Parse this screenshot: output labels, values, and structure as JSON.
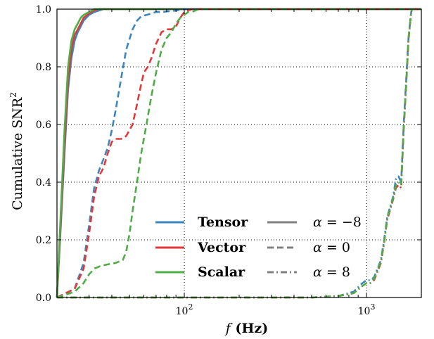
{
  "chart_data": {
    "type": "line",
    "xlabel": "f (Hz)",
    "ylabel": "Cumulative SNR²",
    "xscale": "log",
    "xlim": [
      20,
      2000
    ],
    "ylim": [
      0,
      1
    ],
    "grid": true,
    "grid_style": "dotted",
    "legend_placement": "lower-center",
    "x_ticks": [
      {
        "value": 100,
        "label": "10²"
      },
      {
        "value": 1000,
        "label": "10³"
      }
    ],
    "y_ticks": [
      {
        "value": 0.0,
        "label": "0.0"
      },
      {
        "value": 0.2,
        "label": "0.2"
      },
      {
        "value": 0.4,
        "label": "0.4"
      },
      {
        "value": 0.6,
        "label": "0.6"
      },
      {
        "value": 0.8,
        "label": "0.8"
      },
      {
        "value": 1.0,
        "label": "1.0"
      }
    ],
    "legend": {
      "polarizations": [
        {
          "name": "Tensor",
          "color": "#3a87c0"
        },
        {
          "name": "Vector",
          "color": "#e0383b"
        },
        {
          "name": "Scalar",
          "color": "#4fac46"
        }
      ],
      "alphas": [
        {
          "name": "α = −8",
          "style": "solid"
        },
        {
          "name": "α = 0",
          "style": "dashed"
        },
        {
          "name": "α = 8",
          "style": "dashdot"
        }
      ],
      "alpha_line_color": "#808080"
    },
    "series": [
      {
        "polarization": "Tensor",
        "alpha": "−8",
        "style": "solid",
        "color": "#3a87c0",
        "x": [
          20,
          21,
          22,
          23,
          24,
          25,
          26,
          27,
          28,
          30,
          32,
          34,
          36,
          40,
          60,
          100,
          2000
        ],
        "y": [
          0.0,
          0.25,
          0.5,
          0.72,
          0.83,
          0.89,
          0.92,
          0.94,
          0.96,
          0.98,
          0.99,
          0.995,
          1.0,
          1.0,
          1.0,
          1.0,
          1.0
        ]
      },
      {
        "polarization": "Vector",
        "alpha": "−8",
        "style": "solid",
        "color": "#e0383b",
        "x": [
          20,
          21,
          22,
          23,
          24,
          25,
          26,
          27,
          28,
          30,
          32,
          34,
          36,
          40,
          60,
          100,
          2000
        ],
        "y": [
          0.0,
          0.27,
          0.53,
          0.75,
          0.86,
          0.91,
          0.93,
          0.95,
          0.97,
          0.985,
          0.995,
          1.0,
          1.0,
          1.0,
          1.0,
          1.0,
          1.0
        ]
      },
      {
        "polarization": "Scalar",
        "alpha": "−8",
        "style": "solid",
        "color": "#4fac46",
        "x": [
          20,
          21,
          22,
          23,
          24,
          25,
          26,
          27,
          28,
          30,
          32,
          34,
          36,
          40,
          60,
          100,
          2000
        ],
        "y": [
          0.0,
          0.3,
          0.58,
          0.8,
          0.89,
          0.93,
          0.95,
          0.97,
          0.98,
          0.99,
          1.0,
          1.0,
          1.0,
          1.0,
          1.0,
          1.0,
          1.0
        ]
      },
      {
        "polarization": "Tensor",
        "alpha": "0",
        "style": "dashed",
        "color": "#3a87c0",
        "x": [
          20,
          25,
          28,
          30,
          32,
          34,
          36,
          38,
          40,
          42,
          45,
          48,
          52,
          55,
          58,
          62,
          66,
          70,
          75,
          80,
          90,
          100,
          120,
          200,
          2000
        ],
        "y": [
          0.0,
          0.03,
          0.12,
          0.25,
          0.38,
          0.44,
          0.48,
          0.52,
          0.58,
          0.65,
          0.76,
          0.86,
          0.93,
          0.96,
          0.975,
          0.98,
          0.985,
          0.99,
          0.99,
          0.992,
          0.995,
          1.0,
          1.0,
          1.0,
          1.0
        ]
      },
      {
        "polarization": "Vector",
        "alpha": "0",
        "style": "dashed",
        "color": "#e0383b",
        "x": [
          20,
          25,
          28,
          30,
          32,
          34,
          36,
          38,
          40,
          42,
          45,
          48,
          52,
          55,
          58,
          60,
          63,
          66,
          70,
          75,
          80,
          85,
          90,
          95,
          100,
          110,
          120,
          200,
          2000
        ],
        "y": [
          0.0,
          0.03,
          0.1,
          0.22,
          0.35,
          0.42,
          0.45,
          0.5,
          0.54,
          0.55,
          0.55,
          0.56,
          0.6,
          0.67,
          0.74,
          0.78,
          0.8,
          0.83,
          0.88,
          0.92,
          0.93,
          0.93,
          0.94,
          0.97,
          0.99,
          1.0,
          1.0,
          1.0,
          1.0
        ]
      },
      {
        "polarization": "Scalar",
        "alpha": "0",
        "style": "dashed",
        "color": "#4fac46",
        "x": [
          20,
          25,
          28,
          30,
          32,
          35,
          38,
          42,
          46,
          48,
          50,
          52,
          55,
          58,
          62,
          66,
          70,
          75,
          80,
          85,
          90,
          95,
          100,
          105,
          110,
          120,
          200,
          2000
        ],
        "y": [
          0.0,
          0.02,
          0.05,
          0.08,
          0.1,
          0.11,
          0.115,
          0.12,
          0.13,
          0.16,
          0.22,
          0.3,
          0.4,
          0.5,
          0.6,
          0.7,
          0.78,
          0.86,
          0.9,
          0.92,
          0.95,
          0.97,
          0.98,
          0.99,
          0.99,
          1.0,
          1.0,
          1.0
        ]
      },
      {
        "polarization": "Tensor",
        "alpha": "8",
        "style": "dashdot",
        "color": "#3a87c0",
        "x": [
          20,
          500,
          700,
          850,
          950,
          1000,
          1050,
          1100,
          1150,
          1200,
          1250,
          1300,
          1400,
          1450,
          1500,
          1550,
          1600,
          1650,
          1700,
          1740,
          1760,
          1780
        ],
        "y": [
          0.0,
          0.0,
          0.005,
          0.02,
          0.05,
          0.06,
          0.06,
          0.07,
          0.1,
          0.13,
          0.2,
          0.28,
          0.35,
          0.41,
          0.42,
          0.4,
          0.6,
          0.75,
          0.9,
          0.96,
          0.99,
          1.0
        ]
      },
      {
        "polarization": "Vector",
        "alpha": "8",
        "style": "dashdot",
        "color": "#e0383b",
        "x": [
          20,
          500,
          700,
          850,
          950,
          1000,
          1050,
          1100,
          1150,
          1200,
          1250,
          1300,
          1400,
          1450,
          1500,
          1550,
          1600,
          1650,
          1700,
          1740,
          1760,
          1780
        ],
        "y": [
          0.0,
          0.0,
          0.005,
          0.015,
          0.04,
          0.05,
          0.05,
          0.06,
          0.09,
          0.12,
          0.19,
          0.27,
          0.34,
          0.38,
          0.39,
          0.38,
          0.58,
          0.73,
          0.89,
          0.96,
          0.99,
          1.0
        ]
      },
      {
        "polarization": "Scalar",
        "alpha": "8",
        "style": "dashdot",
        "color": "#4fac46",
        "x": [
          20,
          500,
          700,
          850,
          950,
          1000,
          1050,
          1100,
          1150,
          1200,
          1250,
          1300,
          1400,
          1450,
          1500,
          1550,
          1600,
          1650,
          1700,
          1740,
          1760,
          1780
        ],
        "y": [
          0.0,
          0.0,
          0.005,
          0.015,
          0.04,
          0.05,
          0.05,
          0.065,
          0.095,
          0.125,
          0.195,
          0.275,
          0.345,
          0.39,
          0.4,
          0.39,
          0.59,
          0.74,
          0.9,
          0.96,
          0.99,
          1.0
        ]
      }
    ]
  }
}
